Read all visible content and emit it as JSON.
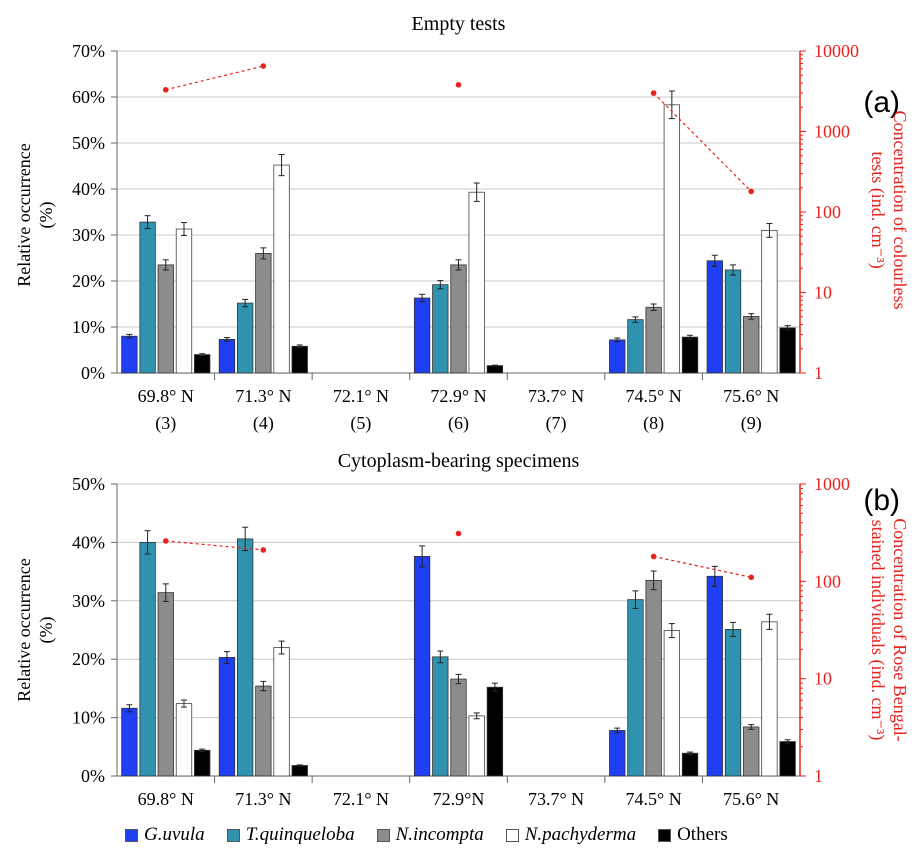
{
  "colors": {
    "G.uvula": "#1f3ff2",
    "T.quinqueloba": "#2f93b0",
    "N.incompta": "#8c8c8c",
    "N.pachyderma": "#ffffff",
    "Others": "#000000",
    "concentration": "#e8231f",
    "grid": "#c8c8c8"
  },
  "legend": [
    {
      "name": "G.uvula",
      "italic": true
    },
    {
      "name": "T.quinqueloba",
      "italic": true
    },
    {
      "name": "N.incompta",
      "italic": true
    },
    {
      "name": "N.pachyderma",
      "italic": true
    },
    {
      "name": "Others",
      "italic": false
    }
  ],
  "chart_data": [
    {
      "type": "bar",
      "title": "Empty tests",
      "panel_label": "(a)",
      "ylabel": [
        "Relative occurrence",
        "(%)"
      ],
      "y2label": [
        "Concentration of colourless",
        "tests (ind. cm⁻³)"
      ],
      "ylim": [
        0,
        70
      ],
      "yticks": [
        "0%",
        "10%",
        "20%",
        "30%",
        "40%",
        "50%",
        "60%",
        "70%"
      ],
      "y2scale": "log",
      "y2lim": [
        1,
        10000
      ],
      "y2ticks": [
        "1",
        "10",
        "100",
        "1000",
        "10000"
      ],
      "categories": [
        [
          "69.8° N",
          "(3)"
        ],
        [
          "71.3° N",
          "(4)"
        ],
        [
          "72.1° N",
          "(5)"
        ],
        [
          "72.9° N",
          "(6)"
        ],
        [
          "73.7° N",
          "(7)"
        ],
        [
          "74.5° N",
          "(8)"
        ],
        [
          "75.6° N",
          "(9)"
        ]
      ],
      "series": [
        {
          "name": "G.uvula",
          "values": [
            8,
            7.3,
            null,
            16.3,
            null,
            7.2,
            24.4
          ],
          "errors": [
            0.4,
            0.4,
            null,
            0.8,
            null,
            0.4,
            1.2
          ]
        },
        {
          "name": "T.quinqueloba",
          "values": [
            32.8,
            15.2,
            null,
            19.2,
            null,
            11.6,
            22.4
          ],
          "errors": [
            1.4,
            0.8,
            null,
            0.9,
            null,
            0.6,
            1.1
          ]
        },
        {
          "name": "N.incompta",
          "values": [
            23.5,
            26,
            null,
            23.5,
            null,
            14.3,
            12.3
          ],
          "errors": [
            1.1,
            1.2,
            null,
            1.1,
            null,
            0.7,
            0.6
          ]
        },
        {
          "name": "N.pachyderma",
          "values": [
            31.3,
            45.2,
            null,
            39.3,
            null,
            58.3,
            31
          ],
          "errors": [
            1.4,
            2.3,
            null,
            2,
            null,
            3,
            1.5
          ]
        },
        {
          "name": "Others",
          "values": [
            4,
            5.8,
            null,
            1.6,
            null,
            7.8,
            9.8
          ],
          "errors": [
            0.2,
            0.3,
            null,
            0.1,
            null,
            0.4,
            0.5
          ]
        }
      ],
      "concentration": [
        3300,
        6500,
        null,
        3800,
        null,
        3000,
        180
      ],
      "concentration_segments": [
        [
          0,
          1
        ],
        [
          5,
          6
        ]
      ]
    },
    {
      "type": "bar",
      "title": "Cytoplasm-bearing specimens",
      "panel_label": "(b)",
      "ylabel": [
        "Relative occurrence",
        "(%)"
      ],
      "y2label": [
        "Concentration of Rose Bengal-",
        "stained individuals (ind. cm⁻³)"
      ],
      "ylim": [
        0,
        50
      ],
      "yticks": [
        "0%",
        "10%",
        "20%",
        "30%",
        "40%",
        "50%"
      ],
      "y2scale": "log",
      "y2lim": [
        1,
        1000
      ],
      "y2ticks": [
        "1",
        "10",
        "100",
        "1000"
      ],
      "categories": [
        [
          "69.8° N"
        ],
        [
          "71.3° N"
        ],
        [
          "72.1° N"
        ],
        [
          "72.9°N"
        ],
        [
          "73.7° N"
        ],
        [
          "74.5° N"
        ],
        [
          "75.6° N"
        ]
      ],
      "series": [
        {
          "name": "G.uvula",
          "values": [
            11.6,
            20.3,
            null,
            37.6,
            null,
            7.8,
            34.2
          ],
          "errors": [
            0.6,
            1,
            null,
            1.8,
            null,
            0.4,
            1.7
          ]
        },
        {
          "name": "T.quinqueloba",
          "values": [
            40,
            40.6,
            null,
            20.4,
            null,
            30.2,
            25.1
          ],
          "errors": [
            2,
            2,
            null,
            1,
            null,
            1.5,
            1.2
          ]
        },
        {
          "name": "N.incompta",
          "values": [
            31.4,
            15.4,
            null,
            16.6,
            null,
            33.5,
            8.4
          ],
          "errors": [
            1.5,
            0.8,
            null,
            0.8,
            null,
            1.6,
            0.4
          ]
        },
        {
          "name": "N.pachyderma",
          "values": [
            12.4,
            22,
            null,
            10.3,
            null,
            24.9,
            26.4
          ],
          "errors": [
            0.6,
            1.1,
            null,
            0.5,
            null,
            1.2,
            1.3
          ]
        },
        {
          "name": "Others",
          "values": [
            4.4,
            1.8,
            null,
            15.2,
            null,
            3.9,
            5.9
          ],
          "errors": [
            0.2,
            0.1,
            null,
            0.7,
            null,
            0.2,
            0.3
          ]
        }
      ],
      "concentration": [
        260,
        210,
        null,
        310,
        null,
        180,
        110
      ],
      "concentration_segments": [
        [
          0,
          1
        ],
        [
          5,
          6
        ]
      ]
    }
  ]
}
